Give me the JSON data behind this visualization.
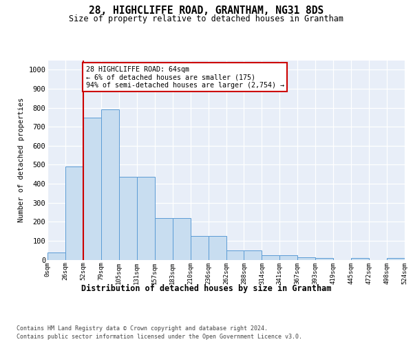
{
  "title": "28, HIGHCLIFFE ROAD, GRANTHAM, NG31 8DS",
  "subtitle": "Size of property relative to detached houses in Grantham",
  "xlabel": "Distribution of detached houses by size in Grantham",
  "ylabel": "Number of detached properties",
  "bin_labels": [
    "0sqm",
    "26sqm",
    "52sqm",
    "79sqm",
    "105sqm",
    "131sqm",
    "157sqm",
    "183sqm",
    "210sqm",
    "236sqm",
    "262sqm",
    "288sqm",
    "314sqm",
    "341sqm",
    "367sqm",
    "393sqm",
    "419sqm",
    "445sqm",
    "472sqm",
    "498sqm",
    "524sqm"
  ],
  "bar_values": [
    38,
    490,
    748,
    790,
    435,
    435,
    220,
    220,
    125,
    125,
    50,
    50,
    25,
    25,
    13,
    8,
    0,
    8,
    0,
    8
  ],
  "bar_color": "#c8ddf0",
  "bar_edge_color": "#5b9bd5",
  "vline_color": "#cc0000",
  "annotation_text": "28 HIGHCLIFFE ROAD: 64sqm\n← 6% of detached houses are smaller (175)\n94% of semi-detached houses are larger (2,754) →",
  "annotation_box_color": "#ffffff",
  "annotation_box_edge_color": "#cc0000",
  "ylim_max": 1050,
  "yticks": [
    0,
    100,
    200,
    300,
    400,
    500,
    600,
    700,
    800,
    900,
    1000
  ],
  "background_color": "#e8eef8",
  "footer_line1": "Contains HM Land Registry data © Crown copyright and database right 2024.",
  "footer_line2": "Contains public sector information licensed under the Open Government Licence v3.0."
}
